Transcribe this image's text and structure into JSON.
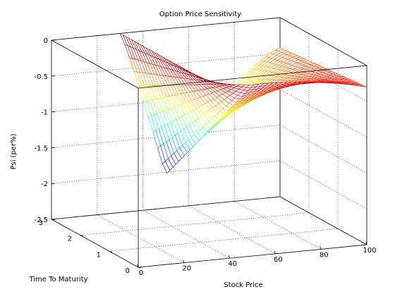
{
  "chart_data": {
    "type": "surface-mesh-3d",
    "title": "Option Price Sensitivity",
    "xlabel": "Stock Price",
    "ylabel": "Time To Maturity",
    "zlabel": "Psi (per%)",
    "xlim": [
      0,
      100
    ],
    "ylim": [
      0,
      3
    ],
    "zlim": [
      -2.5,
      0
    ],
    "x_ticks": [
      0,
      20,
      40,
      60,
      80,
      100
    ],
    "y_ticks": [
      0,
      1,
      2,
      3
    ],
    "z_ticks": [
      0,
      -0.5,
      -1,
      -1.5,
      -2,
      -2.5
    ],
    "x_tick_labels": [
      "0",
      "20",
      "40",
      "60",
      "80",
      "100"
    ],
    "y_tick_labels": [
      "0",
      "1",
      "2",
      "3"
    ],
    "z_tick_labels": [
      "0",
      "-0.5",
      "-1",
      "-1.5",
      "-2",
      "-2.5"
    ],
    "grid": true,
    "box": true,
    "colormap": "jet",
    "surface": {
      "x_range": [
        30,
        100
      ],
      "y_range": [
        0,
        3
      ],
      "min_point": {
        "x": 50,
        "y": 3,
        "z": -2.03
      },
      "max_z": 0,
      "corner_values": {
        "x30_y0": 0,
        "x30_y3": -0.03,
        "x100_y0": -0.3,
        "x100_y3": -0.42
      }
    }
  },
  "colors": {
    "axis": "#000000",
    "grid": "#000000",
    "background": "#ffffff"
  }
}
